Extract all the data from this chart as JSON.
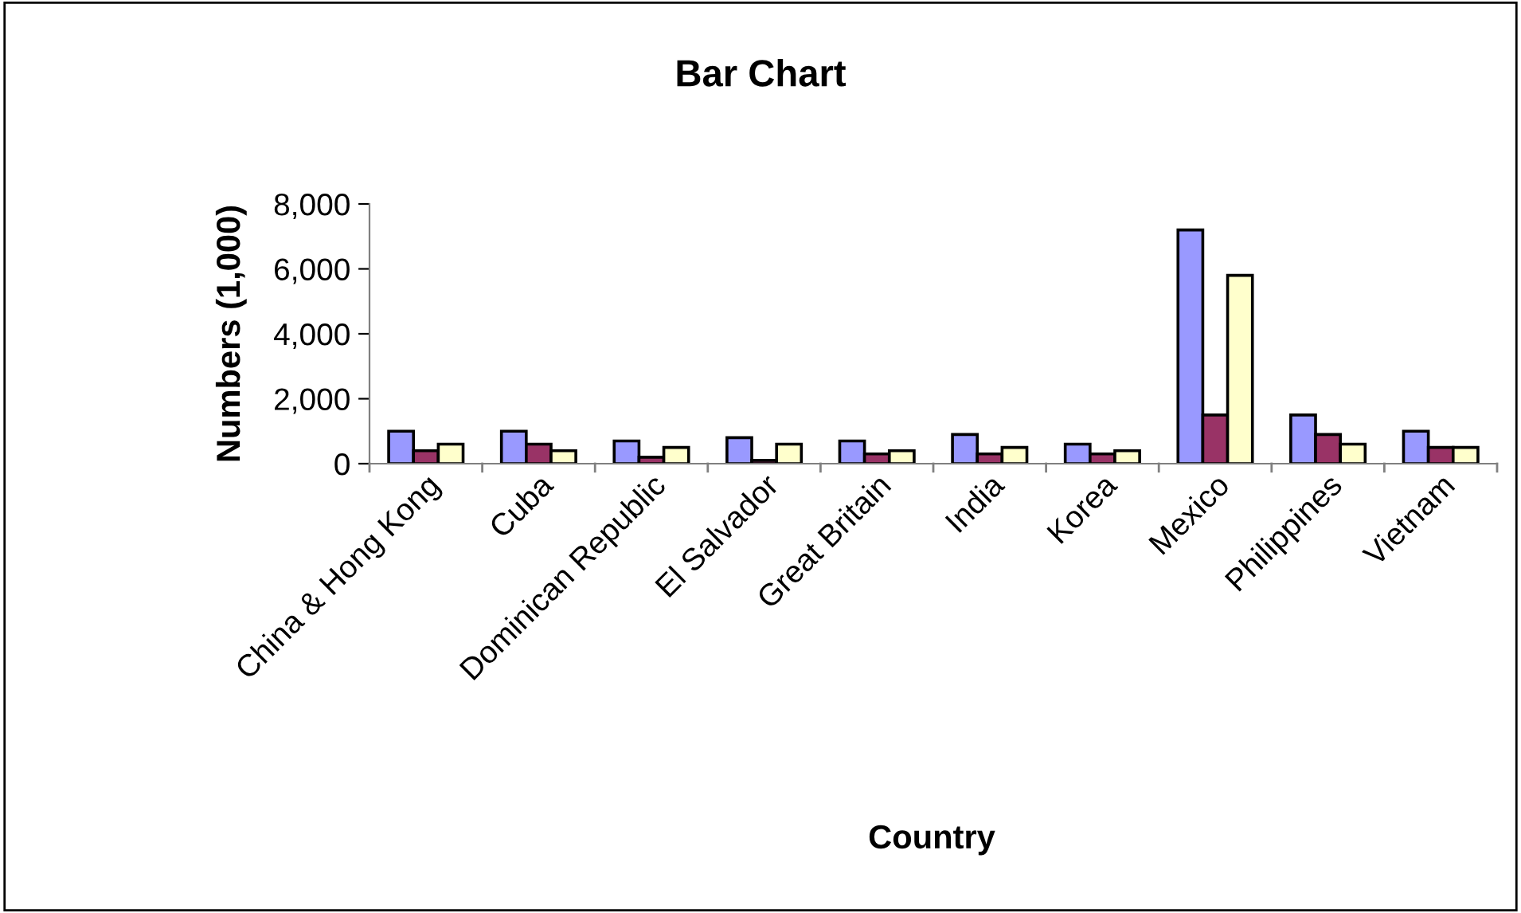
{
  "chart_data": {
    "type": "bar",
    "title": "Bar Chart",
    "xlabel": "Country",
    "ylabel": "Numbers (1,000)",
    "categories": [
      "China & Hong Kong",
      "Cuba",
      "Dominican Republic",
      "El Salvador",
      "Great Britain",
      "India",
      "Korea",
      "Mexico",
      "Philippines",
      "Vietnam"
    ],
    "series": [
      {
        "color": "#9999ff",
        "values": [
          1000,
          1000,
          700,
          800,
          700,
          900,
          600,
          7200,
          1500,
          1000
        ]
      },
      {
        "color": "#993366",
        "values": [
          400,
          600,
          200,
          100,
          300,
          300,
          300,
          1500,
          900,
          500
        ]
      },
      {
        "color": "#ffffcc",
        "values": [
          600,
          400,
          500,
          600,
          400,
          500,
          400,
          5800,
          600,
          500
        ]
      }
    ],
    "ylim": [
      0,
      8000
    ],
    "yticks": [
      {
        "value": 0,
        "label": "0"
      },
      {
        "value": 2000,
        "label": "2,000"
      },
      {
        "value": 4000,
        "label": "4,000"
      },
      {
        "value": 6000,
        "label": "6,000"
      },
      {
        "value": 8000,
        "label": "8,000"
      }
    ],
    "grid": false,
    "legend": false
  }
}
